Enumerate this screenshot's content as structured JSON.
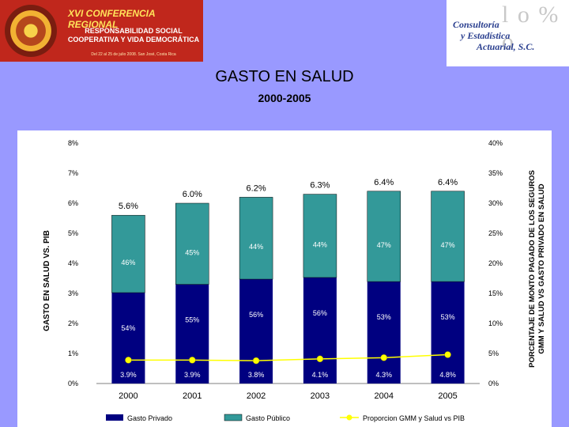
{
  "banner_left": {
    "line1": "XVI CONFERENCIA REGIONAL",
    "line2": "RESPONSABILIDAD SOCIAL COOPERATIVA Y VIDA DEMOCRÁTICA",
    "line3": "Del 22 al 25 de julio 2008. San José, Costa Rica"
  },
  "banner_right": {
    "line1": "Consultoría",
    "line2": "y Estadística",
    "line3": "Actuarial, S.C."
  },
  "title": "GASTO EN SALUD",
  "subtitle": "2000-2005",
  "chart_data": {
    "type": "bar",
    "stacked": true,
    "categories": [
      "2000",
      "2001",
      "2002",
      "2003",
      "2004",
      "2005"
    ],
    "totals": [
      5.6,
      6.0,
      6.2,
      6.3,
      6.4,
      6.4
    ],
    "total_labels": [
      "5.6%",
      "6.0%",
      "6.2%",
      "6.3%",
      "6.4%",
      "6.4%"
    ],
    "series": [
      {
        "name": "Gasto Privado",
        "color": "#000080",
        "shares": [
          54,
          55,
          56,
          56,
          53,
          53
        ],
        "labels": [
          "54%",
          "55%",
          "56%",
          "56%",
          "53%",
          "53%"
        ]
      },
      {
        "name": "Gasto Público",
        "color": "#339999",
        "shares": [
          46,
          45,
          44,
          44,
          47,
          47
        ],
        "labels": [
          "46%",
          "45%",
          "44%",
          "44%",
          "47%",
          "47%"
        ]
      },
      {
        "name": "Proporcion GMM y Salud vs PIB",
        "color": "#ffff00",
        "type": "line",
        "axis": "right",
        "values": [
          3.9,
          3.9,
          3.8,
          4.1,
          4.3,
          4.8
        ],
        "labels": [
          "3.9%",
          "3.9%",
          "3.8%",
          "4.1%",
          "4.3%",
          "4.8%"
        ]
      }
    ],
    "ylabel_left": "GASTO EN SALUD VS. PIB",
    "ylabel_right_line1": "PORCENTAJE DE MONTO PAGADO DE LOS SEGUROS",
    "ylabel_right_line2": "GMM Y SALUD VS GASTO PRIVADO EN SALUD",
    "ylim_left": [
      0,
      8
    ],
    "ylim_right": [
      0,
      40
    ],
    "left_ticks": [
      "0%",
      "1%",
      "2%",
      "3%",
      "4%",
      "5%",
      "6%",
      "7%",
      "8%"
    ],
    "right_ticks": [
      "0%",
      "5%",
      "10%",
      "15%",
      "20%",
      "25%",
      "30%",
      "35%",
      "40%"
    ],
    "legend_position": "bottom"
  }
}
